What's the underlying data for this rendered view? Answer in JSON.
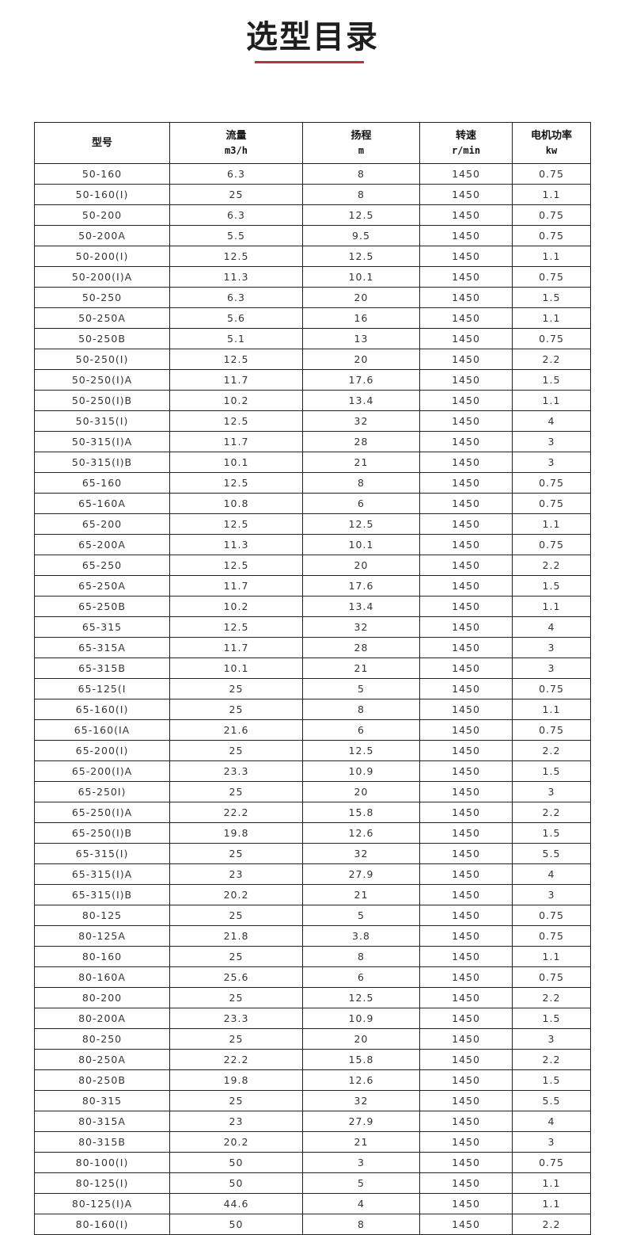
{
  "title": "选型目录",
  "accent_color": "#d0263a",
  "table": {
    "headers": [
      {
        "label": "型号",
        "unit": ""
      },
      {
        "label": "流量",
        "unit": "m3/h"
      },
      {
        "label": "扬程",
        "unit": "m"
      },
      {
        "label": "转速",
        "unit": "r/min"
      },
      {
        "label": "电机功率",
        "unit": "kw"
      }
    ],
    "rows": [
      [
        "50-160",
        "6.3",
        "8",
        "1450",
        "0.75"
      ],
      [
        "50-160(I)",
        "25",
        "8",
        "1450",
        "1.1"
      ],
      [
        "50-200",
        "6.3",
        "12.5",
        "1450",
        "0.75"
      ],
      [
        "50-200A",
        "5.5",
        "9.5",
        "1450",
        "0.75"
      ],
      [
        "50-200(I)",
        "12.5",
        "12.5",
        "1450",
        "1.1"
      ],
      [
        "50-200(I)A",
        "11.3",
        "10.1",
        "1450",
        "0.75"
      ],
      [
        "50-250",
        "6.3",
        "20",
        "1450",
        "1.5"
      ],
      [
        "50-250A",
        "5.6",
        "16",
        "1450",
        "1.1"
      ],
      [
        "50-250B",
        "5.1",
        "13",
        "1450",
        "0.75"
      ],
      [
        "50-250(I)",
        "12.5",
        "20",
        "1450",
        "2.2"
      ],
      [
        "50-250(I)A",
        "11.7",
        "17.6",
        "1450",
        "1.5"
      ],
      [
        "50-250(I)B",
        "10.2",
        "13.4",
        "1450",
        "1.1"
      ],
      [
        "50-315(I)",
        "12.5",
        "32",
        "1450",
        "4"
      ],
      [
        "50-315(I)A",
        "11.7",
        "28",
        "1450",
        "3"
      ],
      [
        "50-315(I)B",
        "10.1",
        "21",
        "1450",
        "3"
      ],
      [
        "65-160",
        "12.5",
        "8",
        "1450",
        "0.75"
      ],
      [
        "65-160A",
        "10.8",
        "6",
        "1450",
        "0.75"
      ],
      [
        "65-200",
        "12.5",
        "12.5",
        "1450",
        "1.1"
      ],
      [
        "65-200A",
        "11.3",
        "10.1",
        "1450",
        "0.75"
      ],
      [
        "65-250",
        "12.5",
        "20",
        "1450",
        "2.2"
      ],
      [
        "65-250A",
        "11.7",
        "17.6",
        "1450",
        "1.5"
      ],
      [
        "65-250B",
        "10.2",
        "13.4",
        "1450",
        "1.1"
      ],
      [
        "65-315",
        "12.5",
        "32",
        "1450",
        "4"
      ],
      [
        "65-315A",
        "11.7",
        "28",
        "1450",
        "3"
      ],
      [
        "65-315B",
        "10.1",
        "21",
        "1450",
        "3"
      ],
      [
        "65-125(I",
        "25",
        "5",
        "1450",
        "0.75"
      ],
      [
        "65-160(I)",
        "25",
        "8",
        "1450",
        "1.1"
      ],
      [
        "65-160(IA",
        "21.6",
        "6",
        "1450",
        "0.75"
      ],
      [
        "65-200(I)",
        "25",
        "12.5",
        "1450",
        "2.2"
      ],
      [
        "65-200(I)A",
        "23.3",
        "10.9",
        "1450",
        "1.5"
      ],
      [
        "65-250I)",
        "25",
        "20",
        "1450",
        "3"
      ],
      [
        "65-250(I)A",
        "22.2",
        "15.8",
        "1450",
        "2.2"
      ],
      [
        "65-250(I)B",
        "19.8",
        "12.6",
        "1450",
        "1.5"
      ],
      [
        "65-315(I)",
        "25",
        "32",
        "1450",
        "5.5"
      ],
      [
        "65-315(I)A",
        "23",
        "27.9",
        "1450",
        "4"
      ],
      [
        "65-315(I)B",
        "20.2",
        "21",
        "1450",
        "3"
      ],
      [
        "80-125",
        "25",
        "5",
        "1450",
        "0.75"
      ],
      [
        "80-125A",
        "21.8",
        "3.8",
        "1450",
        "0.75"
      ],
      [
        "80-160",
        "25",
        "8",
        "1450",
        "1.1"
      ],
      [
        "80-160A",
        "25.6",
        "6",
        "1450",
        "0.75"
      ],
      [
        "80-200",
        "25",
        "12.5",
        "1450",
        "2.2"
      ],
      [
        "80-200A",
        "23.3",
        "10.9",
        "1450",
        "1.5"
      ],
      [
        "80-250",
        "25",
        "20",
        "1450",
        "3"
      ],
      [
        "80-250A",
        "22.2",
        "15.8",
        "1450",
        "2.2"
      ],
      [
        "80-250B",
        "19.8",
        "12.6",
        "1450",
        "1.5"
      ],
      [
        "80-315",
        "25",
        "32",
        "1450",
        "5.5"
      ],
      [
        "80-315A",
        "23",
        "27.9",
        "1450",
        "4"
      ],
      [
        "80-315B",
        "20.2",
        "21",
        "1450",
        "3"
      ],
      [
        "80-100(I)",
        "50",
        "3",
        "1450",
        "0.75"
      ],
      [
        "80-125(I)",
        "50",
        "5",
        "1450",
        "1.1"
      ],
      [
        "80-125(I)A",
        "44.6",
        "4",
        "1450",
        "1.1"
      ],
      [
        "80-160(I)",
        "50",
        "8",
        "1450",
        "2.2"
      ]
    ]
  }
}
